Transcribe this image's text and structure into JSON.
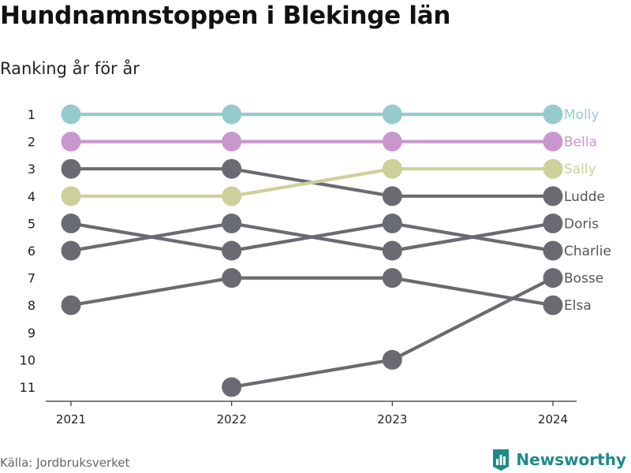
{
  "title": "Hundnamnstoppen i Blekinge län",
  "subtitle": "Ranking år för år",
  "source": "Källa: Jordbruksverket",
  "brand": "Newsworthy",
  "colors": {
    "highlight_molly": "#96cbcb",
    "highlight_bella": "#c997cd",
    "highlight_sally": "#cdd099",
    "default_line": "#6a6a72",
    "axis": "#333333",
    "brand": "#1f8a8a"
  },
  "chart_data": {
    "type": "line",
    "x": [
      2021,
      2022,
      2023,
      2024
    ],
    "ylim": [
      1,
      11
    ],
    "y_inverted": true,
    "yticks": [
      1,
      2,
      3,
      4,
      5,
      6,
      7,
      8,
      9,
      10,
      11
    ],
    "series": [
      {
        "name": "Molly",
        "values": [
          1,
          1,
          1,
          1
        ],
        "color": "#96cbcb",
        "label_colored": true
      },
      {
        "name": "Bella",
        "values": [
          2,
          2,
          2,
          2
        ],
        "color": "#c997cd",
        "label_colored": true
      },
      {
        "name": "Sally",
        "values": [
          4,
          4,
          3,
          3
        ],
        "color": "#cdd099",
        "label_colored": true
      },
      {
        "name": "Ludde",
        "values": [
          3,
          3,
          4,
          4
        ],
        "color": "#6a6a72",
        "label_colored": false
      },
      {
        "name": "Doris",
        "values": [
          6,
          5,
          6,
          5
        ],
        "color": "#6a6a72",
        "label_colored": false
      },
      {
        "name": "Charlie",
        "values": [
          5,
          6,
          5,
          6
        ],
        "color": "#6a6a72",
        "label_colored": false
      },
      {
        "name": "Bosse",
        "values": [
          null,
          11,
          10,
          7
        ],
        "color": "#6a6a72",
        "label_colored": false
      },
      {
        "name": "Elsa",
        "values": [
          8,
          7,
          7,
          8
        ],
        "color": "#6a6a72",
        "label_colored": false
      }
    ]
  }
}
